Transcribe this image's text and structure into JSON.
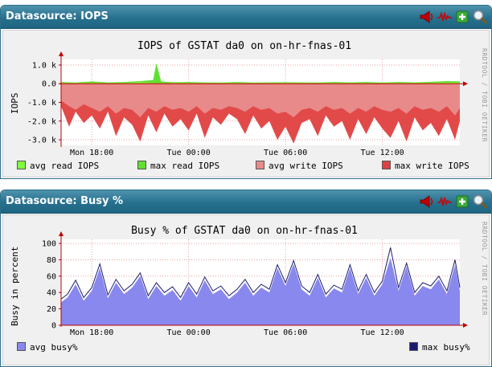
{
  "icon_names": [
    "megaphone-icon",
    "graph-wave-icon",
    "plus-icon",
    "magnifier-icon"
  ],
  "watermark": "RRDTOOL / TOBI OETIKER",
  "colors": {
    "header": "#26708e",
    "avg_read": "#80ff40",
    "max_read": "#60e030",
    "avg_write": "#e88a8a",
    "max_write": "#e04040",
    "avg_busy": "#8888ee",
    "max_busy": "#1c1c6e",
    "grid": "#e6a0a0"
  },
  "panels": [
    {
      "header_title": "Datasource: IOPS",
      "chart_data": {
        "type": "area",
        "title": "IOPS of GSTAT da0 on on-hr-fnas-01",
        "ylabel": "IOPS",
        "xlabel": "",
        "x_ticks": [
          "Mon 18:00",
          "Tue 00:00",
          "Tue 06:00",
          "Tue 12:00"
        ],
        "y_ticks": [
          "1.0 k",
          "0.0",
          "-1.0 k",
          "-2.0 k",
          "-3.0 k"
        ],
        "y_tick_values": [
          1000,
          0,
          -1000,
          -2000,
          -3000
        ],
        "ylim": [
          -3300,
          1300
        ],
        "grid": true,
        "x_unit": "hours",
        "x_range": [
          16.1,
          40.8
        ],
        "x_tick_positions": [
          18,
          24,
          30,
          36
        ],
        "series": [
          {
            "name": "avg read IOPS",
            "color": "#80ff40",
            "x": [
              16.1,
              17,
              18,
              19,
              20,
              21,
              22,
              23,
              24,
              25,
              26,
              27,
              28,
              29,
              30,
              31,
              32,
              33,
              34,
              35,
              36,
              37,
              38,
              39,
              40,
              40.8
            ],
            "values": [
              40,
              30,
              50,
              30,
              40,
              80,
              30,
              40,
              40,
              30,
              30,
              40,
              30,
              30,
              40,
              30,
              30,
              40,
              30,
              40,
              30,
              40,
              30,
              40,
              60,
              50
            ]
          },
          {
            "name": "max read IOPS",
            "color": "#60e030",
            "x": [
              16.1,
              17,
              18,
              19,
              20,
              21,
              21.8,
              22,
              22.3,
              23,
              24,
              25,
              26,
              27,
              28,
              29,
              30,
              31,
              32,
              33,
              34,
              35,
              36,
              37,
              38,
              39,
              40,
              40.8
            ],
            "values": [
              90,
              60,
              120,
              70,
              90,
              140,
              200,
              1100,
              120,
              80,
              90,
              70,
              60,
              90,
              60,
              70,
              80,
              70,
              60,
              90,
              70,
              90,
              60,
              90,
              70,
              100,
              140,
              120
            ]
          },
          {
            "name": "avg write IOPS",
            "color": "#e88a8a",
            "x": [
              16.1,
              16.6,
              17,
              17.5,
              18,
              18.5,
              19,
              19.5,
              20,
              20.5,
              21,
              21.5,
              22,
              22.5,
              23,
              23.5,
              24,
              24.5,
              25,
              25.5,
              26,
              26.5,
              27,
              27.5,
              28,
              28.5,
              29,
              29.5,
              30,
              30.5,
              31,
              31.5,
              32,
              32.5,
              33,
              33.5,
              34,
              34.5,
              35,
              35.5,
              36,
              36.5,
              37,
              37.5,
              38,
              38.5,
              39,
              39.5,
              40,
              40.5,
              40.8
            ],
            "values": [
              -900,
              -1200,
              -1400,
              -1100,
              -1300,
              -1500,
              -1200,
              -1600,
              -1300,
              -1400,
              -1800,
              -1300,
              -1500,
              -1200,
              -1400,
              -1300,
              -1500,
              -1200,
              -1600,
              -1300,
              -1400,
              -1200,
              -1300,
              -1500,
              -1200,
              -1400,
              -1300,
              -1600,
              -1500,
              -1800,
              -1400,
              -1300,
              -1500,
              -1200,
              -1400,
              -1300,
              -1600,
              -1300,
              -1500,
              -1200,
              -1400,
              -1500,
              -1300,
              -1600,
              -1200,
              -1400,
              -1300,
              -1500,
              -1200,
              -1700,
              -1300
            ]
          },
          {
            "name": "max write IOPS",
            "color": "#e04040",
            "x": [
              16.1,
              16.6,
              17,
              17.5,
              18,
              18.5,
              19,
              19.5,
              20,
              20.5,
              21,
              21.5,
              22,
              22.5,
              23,
              23.5,
              24,
              24.5,
              25,
              25.5,
              26,
              26.5,
              27,
              27.5,
              28,
              28.5,
              29,
              29.5,
              30,
              30.5,
              31,
              31.5,
              32,
              32.5,
              33,
              33.5,
              34,
              34.5,
              35,
              35.5,
              36,
              36.5,
              37,
              37.5,
              38,
              38.5,
              39,
              39.5,
              40,
              40.5,
              40.8
            ],
            "values": [
              -1200,
              -2300,
              -1500,
              -2100,
              -1700,
              -2400,
              -1500,
              -2800,
              -1800,
              -2200,
              -3100,
              -1700,
              -2600,
              -1600,
              -2300,
              -1900,
              -2500,
              -1600,
              -2900,
              -1800,
              -2200,
              -1600,
              -1900,
              -2700,
              -1700,
              -2400,
              -2000,
              -3000,
              -2300,
              -3200,
              -2100,
              -1900,
              -2800,
              -1700,
              -2300,
              -2000,
              -3000,
              -1900,
              -2700,
              -1800,
              -2400,
              -2900,
              -2000,
              -3100,
              -1800,
              -2500,
              -2100,
              -2800,
              -1900,
              -3000,
              -2000
            ]
          }
        ]
      }
    },
    {
      "header_title": "Datasource: Busy %",
      "chart_data": {
        "type": "area",
        "title": "Busy % of GSTAT da0 on on-hr-fnas-01",
        "ylabel": "Busy in percent",
        "xlabel": "",
        "x_ticks": [
          "Mon 18:00",
          "Tue 00:00",
          "Tue 06:00",
          "Tue 12:00"
        ],
        "y_ticks": [
          "100",
          "80",
          "60",
          "40",
          "20",
          "0"
        ],
        "y_tick_values": [
          100,
          80,
          60,
          40,
          20,
          0
        ],
        "ylim": [
          0,
          105
        ],
        "grid": true,
        "x_unit": "hours",
        "x_range": [
          16.1,
          40.8
        ],
        "x_tick_positions": [
          18,
          24,
          30,
          36
        ],
        "series": [
          {
            "name": "avg busy%",
            "color": "#8888ee",
            "x": [
              16.1,
              16.5,
              17,
              17.5,
              18,
              18.5,
              19,
              19.5,
              20,
              20.5,
              21,
              21.5,
              22,
              22.5,
              23,
              23.5,
              24,
              24.5,
              25,
              25.5,
              26,
              26.5,
              27,
              27.5,
              28,
              28.5,
              29,
              29.5,
              30,
              30.5,
              31,
              31.5,
              32,
              32.5,
              33,
              33.5,
              34,
              34.5,
              35,
              35.5,
              36,
              36.5,
              37,
              37.5,
              38,
              38.5,
              39,
              39.5,
              40,
              40.5,
              40.8
            ],
            "values": [
              28,
              34,
              50,
              30,
              42,
              70,
              33,
              52,
              38,
              46,
              60,
              32,
              48,
              36,
              43,
              30,
              48,
              34,
              55,
              38,
              44,
              32,
              40,
              52,
              36,
              46,
              40,
              70,
              48,
              75,
              44,
              36,
              58,
              34,
              45,
              40,
              70,
              38,
              58,
              36,
              50,
              82,
              42,
              72,
              36,
              48,
              44,
              56,
              38,
              74,
              42
            ]
          },
          {
            "name": "max busy%",
            "color": "#1c1c6e",
            "x": [
              16.1,
              16.5,
              17,
              17.5,
              18,
              18.5,
              19,
              19.5,
              20,
              20.5,
              21,
              21.5,
              22,
              22.5,
              23,
              23.5,
              24,
              24.5,
              25,
              25.5,
              26,
              26.5,
              27,
              27.5,
              28,
              28.5,
              29,
              29.5,
              30,
              30.5,
              31,
              31.5,
              32,
              32.5,
              33,
              33.5,
              34,
              34.5,
              35,
              35.5,
              36,
              36.5,
              37,
              37.5,
              38,
              38.5,
              39,
              39.5,
              40,
              40.5,
              40.8
            ],
            "values": [
              32,
              38,
              55,
              34,
              46,
              75,
              37,
              56,
              42,
              50,
              64,
              36,
              52,
              40,
              47,
              34,
              52,
              38,
              59,
              42,
              48,
              36,
              44,
              56,
              40,
              50,
              44,
              74,
              52,
              79,
              48,
              40,
              62,
              38,
              49,
              44,
              74,
              42,
              62,
              40,
              54,
              95,
              46,
              76,
              40,
              52,
              48,
              60,
              42,
              80,
              46
            ]
          }
        ]
      }
    }
  ]
}
